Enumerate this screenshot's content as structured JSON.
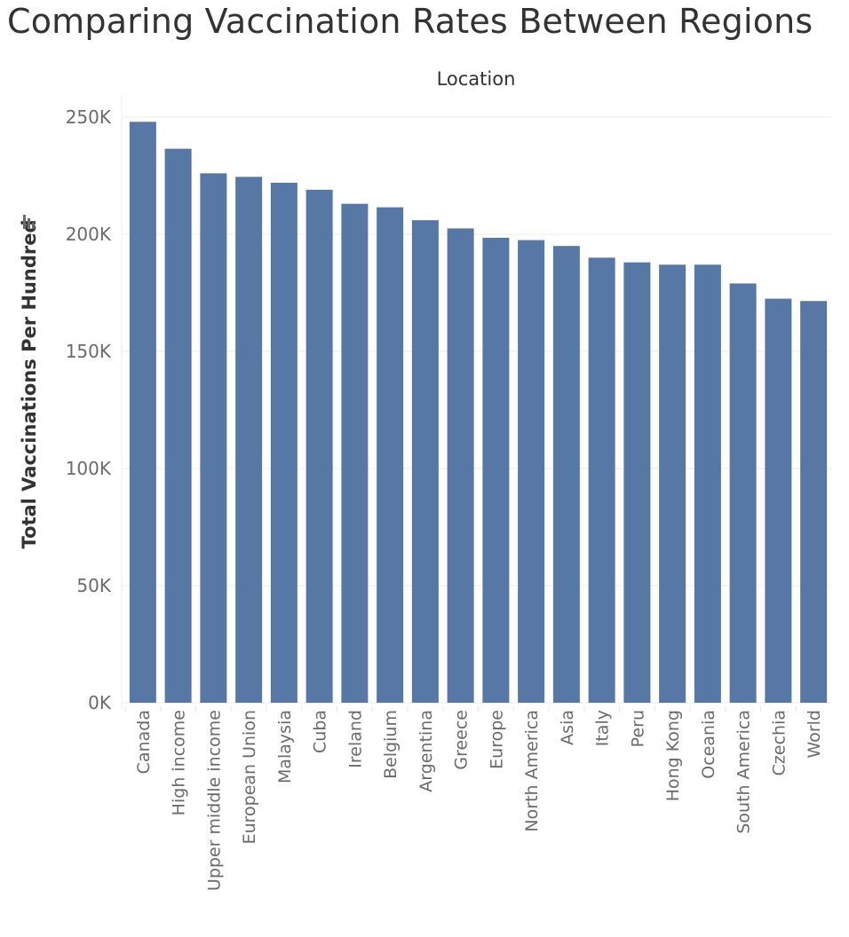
{
  "title": "Comparing Vaccination Rates Between Regions",
  "chart_data": {
    "type": "bar",
    "column_header": "Location",
    "ylabel": "Total Vaccinations Per Hundred",
    "xlabel": "",
    "ylim": [
      0,
      250000
    ],
    "yticks": [
      {
        "value": 0,
        "label": "0K"
      },
      {
        "value": 50000,
        "label": "50K"
      },
      {
        "value": 100000,
        "label": "100K"
      },
      {
        "value": 150000,
        "label": "150K"
      },
      {
        "value": 200000,
        "label": "200K"
      },
      {
        "value": 250000,
        "label": "250K"
      }
    ],
    "grid": true,
    "bar_color": "#5778a4",
    "sort_icon": "sort-descending-icon",
    "categories": [
      "Canada",
      "High income",
      "Upper middle income",
      "European Union",
      "Malaysia",
      "Cuba",
      "Ireland",
      "Belgium",
      "Argentina",
      "Greece",
      "Europe",
      "North America",
      "Asia",
      "Italy",
      "Peru",
      "Hong Kong",
      "Oceania",
      "South America",
      "Czechia",
      "World"
    ],
    "values": [
      248000,
      236500,
      226000,
      224500,
      222000,
      219000,
      213000,
      211500,
      206000,
      202500,
      198500,
      197500,
      195000,
      190000,
      188000,
      187000,
      187000,
      179000,
      172500,
      171500
    ]
  }
}
